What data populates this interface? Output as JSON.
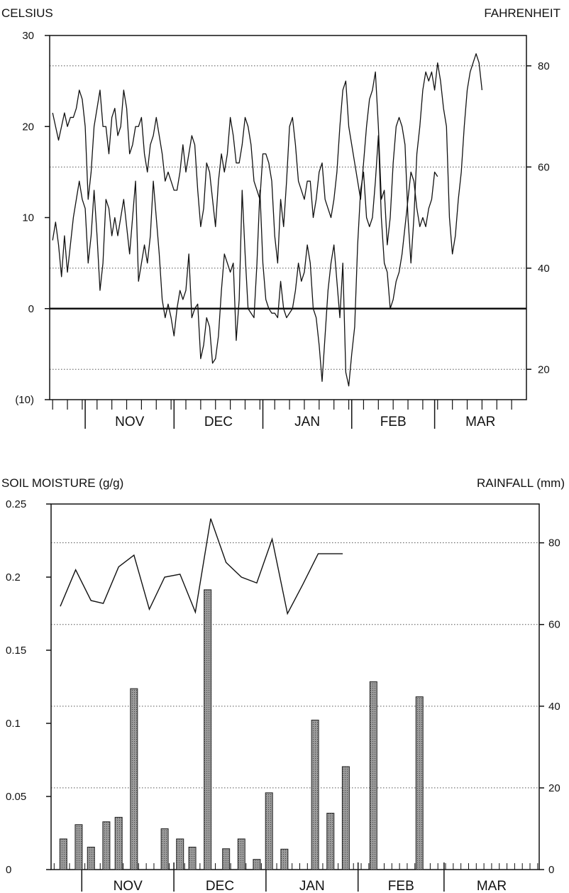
{
  "chart_data": [
    {
      "type": "line",
      "y_label_left": "CELSIUS",
      "y_label_right": "FAHRENHEIT",
      "ylim": [
        -10,
        30
      ],
      "yticks_left": [
        {
          "value": 30,
          "label": "30"
        },
        {
          "value": 20,
          "label": "20"
        },
        {
          "value": 10,
          "label": "10"
        },
        {
          "value": 0,
          "label": "0"
        },
        {
          "value": -10,
          "label": "(10)"
        }
      ],
      "yticks_right": [
        {
          "value": 80,
          "label": "80"
        },
        {
          "value": 60,
          "label": "60"
        },
        {
          "value": 40,
          "label": "40"
        },
        {
          "value": 20,
          "label": "20"
        }
      ],
      "grid": "dotted horizontal at Fahrenheit ticks",
      "zero_line": 0,
      "months": [
        "NOV",
        "DEC",
        "JAN",
        "FEB",
        "MAR"
      ],
      "month_boundaries": [
        1,
        31,
        61,
        91,
        119,
        150
      ],
      "days_span": [
        -11,
        150
      ],
      "series": [
        {
          "values": [
            21.5,
            20,
            18.5,
            20,
            21.5,
            20,
            21,
            21,
            22,
            24,
            23,
            20,
            12,
            15,
            20,
            22,
            24,
            20,
            20,
            17,
            21,
            22,
            19,
            20,
            24,
            22,
            17,
            18,
            20,
            20,
            21,
            17,
            15,
            18,
            19,
            21,
            19,
            17,
            14,
            15,
            14,
            13,
            13,
            15,
            18,
            15,
            17,
            19,
            18,
            13,
            9,
            11,
            16,
            15,
            12,
            9,
            14,
            17,
            15,
            17,
            21,
            19,
            16,
            16,
            18,
            21,
            20,
            18,
            14,
            13,
            12,
            17,
            17,
            16,
            14,
            8,
            5,
            12,
            9,
            14,
            20,
            21,
            18,
            14,
            13,
            12,
            14,
            14,
            10,
            12,
            15,
            16,
            12,
            11,
            10,
            12,
            15,
            20,
            24,
            25,
            20,
            18,
            16,
            14,
            12,
            16,
            20,
            23,
            24,
            26,
            20,
            12,
            13,
            7,
            10,
            16,
            20,
            21,
            20,
            18,
            10,
            5,
            10,
            17,
            20,
            24,
            26,
            25,
            26,
            24,
            27,
            25,
            22,
            20,
            10,
            6,
            8,
            12,
            15,
            20,
            24,
            26,
            27,
            28,
            27,
            24
          ]
        },
        {
          "values": [
            7.5,
            9.5,
            7,
            3.5,
            8,
            4,
            7,
            10,
            12,
            14,
            12,
            11,
            5,
            8,
            13,
            8,
            2,
            5,
            12,
            11,
            8,
            10,
            8,
            10,
            12,
            9,
            6,
            10,
            14,
            3,
            5,
            7,
            5,
            8,
            14,
            10,
            6,
            1,
            -1,
            0.5,
            -1,
            -3,
            0,
            2,
            1,
            2,
            6,
            -1,
            0,
            0.5,
            -5.5,
            -4,
            -1,
            -2,
            -6,
            -5.5,
            -3,
            2,
            6,
            5,
            4,
            5,
            -3.5,
            1,
            13,
            6,
            0,
            -0.5,
            -1,
            5,
            13,
            5,
            1,
            0,
            -0.5,
            -0.5,
            -1,
            3,
            0,
            -1,
            -0.5,
            0,
            2,
            5,
            3,
            4,
            7,
            5,
            0,
            -1,
            -4,
            -8,
            -3,
            2,
            5,
            7,
            3,
            -1,
            5,
            -7,
            -8.5,
            -5,
            -2,
            7,
            13,
            15,
            10,
            9,
            10,
            14,
            19,
            10,
            5,
            4,
            0,
            1,
            3,
            4,
            6,
            9,
            12,
            15,
            14,
            11,
            9,
            10,
            9,
            11,
            12,
            15,
            14.5
          ]
        }
      ]
    },
    {
      "type": "bar",
      "y_label_left": "SOIL MOISTURE (g/g)",
      "y_label_right": "RAINFALL (mm)",
      "ylim": [
        0,
        0.25
      ],
      "ylim_right": [
        0,
        89.5
      ],
      "yticks_left": [
        {
          "value": 0.25,
          "label": "0.25"
        },
        {
          "value": 0.2,
          "label": "0.2"
        },
        {
          "value": 0.15,
          "label": "0.15"
        },
        {
          "value": 0.1,
          "label": "0.1"
        },
        {
          "value": 0.05,
          "label": "0.05"
        },
        {
          "value": 0,
          "label": "0"
        }
      ],
      "yticks_right": [
        {
          "value": 80,
          "label": "80"
        },
        {
          "value": 60,
          "label": "60"
        },
        {
          "value": 40,
          "label": "40"
        },
        {
          "value": 20,
          "label": "20"
        },
        {
          "value": 0,
          "label": "0"
        }
      ],
      "grid": "dotted horizontal at Rainfall ticks",
      "months": [
        "NOV",
        "DEC",
        "JAN",
        "FEB",
        "MAR"
      ],
      "month_boundaries": [
        1,
        31,
        61,
        91,
        119,
        150
      ],
      "days_span": [
        -9,
        150
      ],
      "soil_moisture": {
        "x": [
          -6,
          -1,
          4,
          8,
          13,
          18,
          23,
          28,
          33,
          38,
          43,
          48,
          53,
          58,
          63,
          68,
          73,
          78,
          86
        ],
        "values": [
          0.18,
          0.205,
          0.184,
          0.182,
          0.207,
          0.215,
          0.178,
          0.2,
          0.202,
          0.176,
          0.24,
          0.21,
          0.2,
          0.196,
          0.226,
          0.175,
          0.195,
          0.216,
          0.216
        ]
      },
      "rainfall": {
        "x": [
          -5,
          0,
          4,
          9,
          13,
          18,
          28,
          33,
          37,
          42,
          48,
          53,
          58,
          62,
          67,
          72,
          77,
          82,
          87,
          96,
          111,
          117
        ],
        "values": [
          7.5,
          11,
          5.5,
          11.7,
          12.8,
          44.3,
          10,
          7.5,
          5.5,
          68.5,
          5.1,
          7.5,
          2.5,
          18.8,
          5,
          0,
          36.6,
          13.8,
          25.2,
          46,
          42.3,
          0
        ]
      }
    }
  ]
}
